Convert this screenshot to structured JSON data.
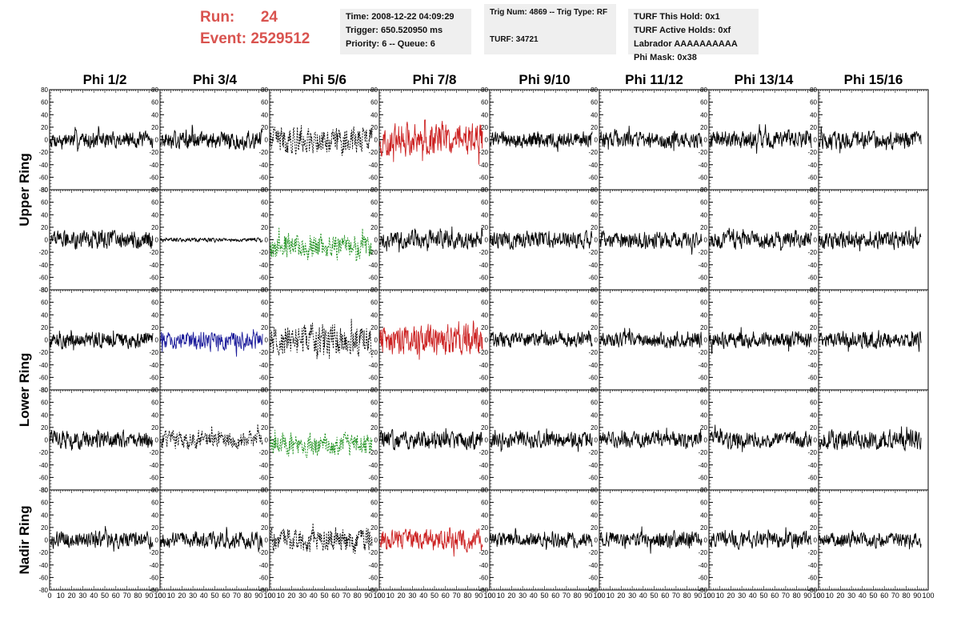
{
  "header": {
    "run_label": "Run:",
    "run_value": "24",
    "event_label": "Event:",
    "event_value": "2529512"
  },
  "info_time": {
    "time": "Time: 2008-12-22 04:09:29",
    "trigger": "Trigger: 650.520950 ms",
    "priority": "Priority: 6 -- Queue: 6"
  },
  "info_trig": {
    "trig": "Trig Num: 4869 -- Trig Type: RF",
    "turf": "TURF: 34721"
  },
  "info_turf": {
    "hold": "TURF This Hold: 0x1",
    "active": "TURF Active Holds: 0xf",
    "labrador": "Labrador AAAAAAAAAA",
    "phimask": "Phi Mask: 0x38"
  },
  "chart_data": {
    "type": "line",
    "columns": [
      "Phi 1/2",
      "Phi 3/4",
      "Phi 5/6",
      "Phi 7/8",
      "Phi 9/10",
      "Phi 11/12",
      "Phi 13/14",
      "Phi 15/16"
    ],
    "ring_labels": [
      {
        "label": "Upper Ring",
        "rows": [
          0,
          1
        ]
      },
      {
        "label": "Lower Ring",
        "rows": [
          2,
          3
        ]
      },
      {
        "label": "Nadir Ring",
        "rows": [
          4,
          4
        ]
      }
    ],
    "ylim": [
      -80,
      80
    ],
    "yticks": [
      -80,
      -60,
      -40,
      -20,
      0,
      20,
      40,
      60,
      80
    ],
    "xlim": [
      0,
      100
    ],
    "xticks": [
      0,
      10,
      20,
      30,
      40,
      50,
      60,
      70,
      80,
      90,
      100
    ],
    "x_tick_labels": [
      "0",
      "10",
      "20",
      "30",
      "40",
      "50",
      "60",
      "70",
      "80",
      "90",
      "100"
    ],
    "colors": {
      "black": "#000000",
      "red": "#cc2222",
      "green": "#1a8f1a",
      "blue": "#1a1a9a"
    },
    "panels": [
      [
        {
          "c": "black",
          "a": 12
        },
        {
          "c": "black",
          "a": 14
        },
        {
          "c": "black",
          "a": 20,
          "dash": true
        },
        {
          "c": "red",
          "a": 24
        },
        {
          "c": "black",
          "a": 12
        },
        {
          "c": "black",
          "a": 12
        },
        {
          "c": "black",
          "a": 13
        },
        {
          "c": "black",
          "a": 13
        }
      ],
      [
        {
          "c": "black",
          "a": 13
        },
        {
          "c": "black",
          "a": 3
        },
        {
          "c": "green",
          "a": 18,
          "dash": true,
          "o": -10
        },
        {
          "c": "black",
          "a": 13
        },
        {
          "c": "black",
          "a": 13
        },
        {
          "c": "black",
          "a": 12
        },
        {
          "c": "black",
          "a": 13
        },
        {
          "c": "black",
          "a": 13
        }
      ],
      [
        {
          "c": "black",
          "a": 12
        },
        {
          "c": "blue",
          "a": 13
        },
        {
          "c": "black",
          "a": 22,
          "dash": true
        },
        {
          "c": "red",
          "a": 22
        },
        {
          "c": "black",
          "a": 11
        },
        {
          "c": "black",
          "a": 11
        },
        {
          "c": "black",
          "a": 12
        },
        {
          "c": "black",
          "a": 12
        }
      ],
      [
        {
          "c": "black",
          "a": 13
        },
        {
          "c": "black",
          "a": 13,
          "dash": true
        },
        {
          "c": "green",
          "a": 17,
          "dash": true,
          "o": -8
        },
        {
          "c": "black",
          "a": 14
        },
        {
          "c": "black",
          "a": 12
        },
        {
          "c": "black",
          "a": 11
        },
        {
          "c": "black",
          "a": 12
        },
        {
          "c": "black",
          "a": 14
        }
      ],
      [
        {
          "c": "black",
          "a": 12
        },
        {
          "c": "black",
          "a": 12
        },
        {
          "c": "black",
          "a": 17,
          "dash": true
        },
        {
          "c": "red",
          "a": 16
        },
        {
          "c": "black",
          "a": 11
        },
        {
          "c": "black",
          "a": 12
        },
        {
          "c": "black",
          "a": 12
        },
        {
          "c": "black",
          "a": 11
        }
      ]
    ]
  }
}
